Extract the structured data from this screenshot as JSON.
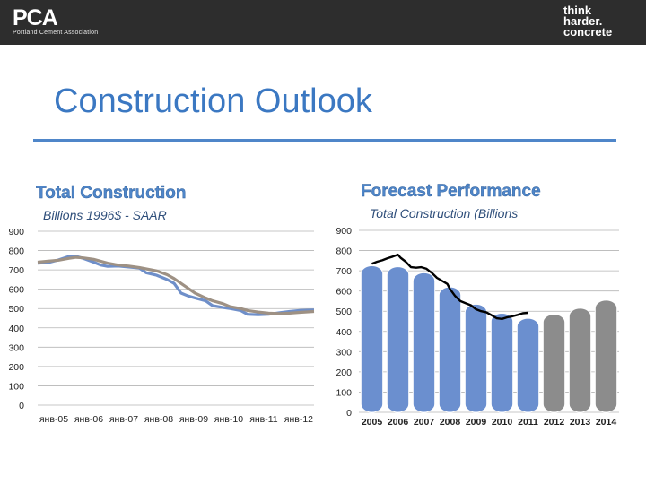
{
  "header": {
    "logo_left": "PCA",
    "logo_left_sub": "Portland Cement Association",
    "logo_right": [
      "think",
      "harder.",
      "concrete"
    ]
  },
  "slide": {
    "title": "Construction Outlook"
  },
  "chart_data": [
    {
      "type": "line",
      "title": "Total Construction",
      "subtitle": "Billions 1996$ - SAAR",
      "ylim": [
        0,
        900
      ],
      "yticks": [
        0,
        100,
        200,
        300,
        400,
        500,
        600,
        700,
        800,
        900
      ],
      "xticks": [
        "янв-05",
        "янв-06",
        "янв-07",
        "янв-08",
        "янв-09",
        "янв-10",
        "янв-11",
        "янв-12"
      ],
      "x_range": [
        0,
        7.9
      ],
      "grid": true,
      "series": [
        {
          "color": "#6f8fc9",
          "points": [
            [
              0,
              735
            ],
            [
              0.3,
              738
            ],
            [
              0.6,
              752
            ],
            [
              0.9,
              770
            ],
            [
              1.1,
              770
            ],
            [
              1.3,
              760
            ],
            [
              1.6,
              740
            ],
            [
              1.8,
              725
            ],
            [
              2.0,
              718
            ],
            [
              2.3,
              720
            ],
            [
              2.6,
              715
            ],
            [
              2.9,
              710
            ],
            [
              3.1,
              685
            ],
            [
              3.4,
              672
            ],
            [
              3.7,
              650
            ],
            [
              3.9,
              630
            ],
            [
              4.1,
              580
            ],
            [
              4.3,
              565
            ],
            [
              4.5,
              555
            ],
            [
              4.8,
              540
            ],
            [
              5.0,
              515
            ],
            [
              5.3,
              505
            ],
            [
              5.5,
              500
            ],
            [
              5.8,
              490
            ],
            [
              6.0,
              470
            ],
            [
              6.3,
              468
            ],
            [
              6.6,
              470
            ],
            [
              6.9,
              478
            ],
            [
              7.2,
              485
            ],
            [
              7.5,
              490
            ],
            [
              7.9,
              492
            ]
          ]
        },
        {
          "color": "#9e9184",
          "points": [
            [
              0,
              740
            ],
            [
              0.3,
              745
            ],
            [
              0.6,
              750
            ],
            [
              0.9,
              760
            ],
            [
              1.1,
              765
            ],
            [
              1.3,
              762
            ],
            [
              1.6,
              755
            ],
            [
              1.8,
              745
            ],
            [
              2.0,
              735
            ],
            [
              2.3,
              725
            ],
            [
              2.6,
              720
            ],
            [
              2.9,
              712
            ],
            [
              3.1,
              705
            ],
            [
              3.4,
              695
            ],
            [
              3.7,
              675
            ],
            [
              3.9,
              655
            ],
            [
              4.1,
              630
            ],
            [
              4.3,
              605
            ],
            [
              4.5,
              580
            ],
            [
              4.8,
              555
            ],
            [
              5.0,
              540
            ],
            [
              5.3,
              525
            ],
            [
              5.5,
              510
            ],
            [
              5.8,
              500
            ],
            [
              6.0,
              490
            ],
            [
              6.3,
              482
            ],
            [
              6.6,
              476
            ],
            [
              6.9,
              474
            ],
            [
              7.2,
              476
            ],
            [
              7.5,
              480
            ],
            [
              7.9,
              485
            ]
          ]
        }
      ]
    },
    {
      "type": "bar",
      "title": "Forecast Performance",
      "subtitle": "Total Construction (Billions",
      "ylim": [
        0,
        900
      ],
      "yticks": [
        0,
        100,
        200,
        300,
        400,
        500,
        600,
        700,
        800,
        900
      ],
      "categories": [
        "2005",
        "2006",
        "2007",
        "2008",
        "2009",
        "2010",
        "2011",
        "2012",
        "2013",
        "2014"
      ],
      "values": [
        725,
        720,
        690,
        620,
        535,
        490,
        465,
        485,
        515,
        555
      ],
      "bar_colors": [
        "#6b8fcf",
        "#6b8fcf",
        "#6b8fcf",
        "#6b8fcf",
        "#6b8fcf",
        "#6b8fcf",
        "#6b8fcf",
        "#8c8c8c",
        "#8c8c8c",
        "#8c8c8c"
      ],
      "overlay_line": {
        "color": "#000000",
        "points": [
          [
            0,
            735
          ],
          [
            0.2,
            745
          ],
          [
            0.4,
            752
          ],
          [
            0.6,
            762
          ],
          [
            0.8,
            770
          ],
          [
            1.0,
            780
          ],
          [
            1.1,
            765
          ],
          [
            1.3,
            745
          ],
          [
            1.5,
            718
          ],
          [
            1.7,
            715
          ],
          [
            1.9,
            718
          ],
          [
            2.1,
            710
          ],
          [
            2.3,
            690
          ],
          [
            2.5,
            665
          ],
          [
            2.7,
            650
          ],
          [
            2.9,
            635
          ],
          [
            3.0,
            610
          ],
          [
            3.2,
            575
          ],
          [
            3.4,
            550
          ],
          [
            3.6,
            540
          ],
          [
            3.8,
            530
          ],
          [
            4.0,
            510
          ],
          [
            4.2,
            500
          ],
          [
            4.4,
            495
          ],
          [
            4.6,
            480
          ],
          [
            4.8,
            465
          ],
          [
            5.0,
            462
          ],
          [
            5.2,
            470
          ],
          [
            5.4,
            475
          ],
          [
            5.6,
            482
          ],
          [
            5.8,
            490
          ],
          [
            6.0,
            492
          ]
        ]
      }
    }
  ]
}
